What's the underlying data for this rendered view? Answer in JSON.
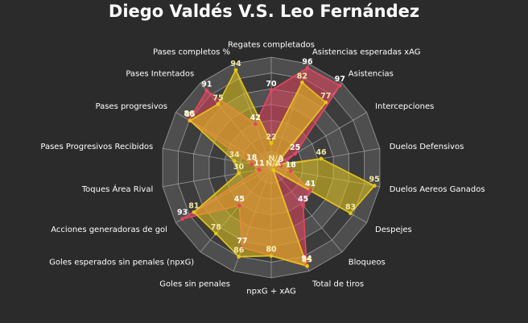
{
  "chart_data": {
    "type": "radar",
    "title": "Diego Valdés V.S. Leo Fernández",
    "categories": [
      "Regates completados",
      "Asistencias esperadas xAG",
      "Asistencias",
      "Intercepciones",
      "Duelos Defensivos",
      "Duelos Aereos Ganados",
      "Despejes",
      "Bloqueos",
      "Total de tiros",
      "npxG + xAG",
      "Goles sin penales",
      "Goles esperados sin penales (npxG)",
      "Acciones generadoras de gol",
      "Toques Área Rival",
      "Pases Progresivos Recibidos",
      "Pases progresivos",
      "Pases Intentados",
      "Pases completos %"
    ],
    "rlim": [
      0,
      100
    ],
    "series": [
      {
        "color": "#e8455f",
        "values": [
          70,
          96,
          97,
          25,
          9,
          18,
          41,
          45,
          94,
          80,
          77,
          45,
          93,
          11,
          18,
          86,
          91,
          42
        ],
        "value_labels": [
          "70",
          "96",
          "97",
          "25",
          "9",
          "18",
          "41",
          "45",
          "94",
          "80",
          "77",
          "45",
          "93",
          "11",
          "18",
          "86",
          "91",
          "42"
        ]
      },
      {
        "color": "#e6c619",
        "values": [
          22,
          82,
          77,
          5,
          46,
          95,
          83,
          3,
          95,
          80,
          86,
          78,
          81,
          30,
          34,
          85,
          75,
          94
        ],
        "value_labels": [
          "22",
          "82",
          "77",
          "N/A",
          "46",
          "95",
          "83",
          "N/A",
          "95",
          "80",
          "86",
          "78",
          "81",
          "30",
          "34",
          "85",
          "75",
          "94"
        ]
      }
    ]
  }
}
